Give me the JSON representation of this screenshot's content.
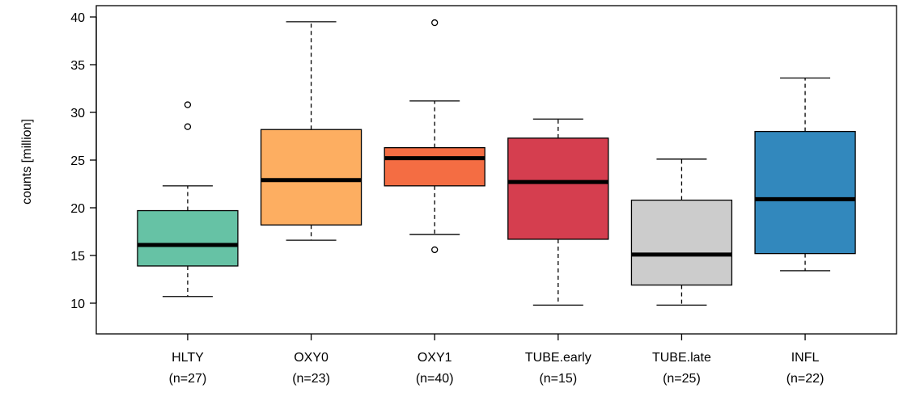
{
  "chart_data": {
    "type": "boxplot",
    "title": "",
    "xlabel": "",
    "ylabel": "counts [million]",
    "ylim": [
      7,
      41
    ],
    "yticks": [
      10,
      15,
      20,
      25,
      30,
      35,
      40
    ],
    "ytick_labels": [
      "10",
      "15",
      "20",
      "25",
      "30",
      "35",
      "40"
    ],
    "grid": false,
    "legend": "none",
    "groups": [
      {
        "label": "HLTY",
        "n_label": "(n=27)",
        "color": "#66c2a5",
        "whisker_low": 10.7,
        "q1": 13.9,
        "median": 16.1,
        "q3": 19.7,
        "whisker_high": 22.3,
        "outliers": [
          28.5,
          30.8
        ]
      },
      {
        "label": "OXY0",
        "n_label": "(n=23)",
        "color": "#fdae61",
        "whisker_low": 16.6,
        "q1": 18.2,
        "median": 22.9,
        "q3": 28.2,
        "whisker_high": 39.5,
        "outliers": []
      },
      {
        "label": "OXY1",
        "n_label": "(n=40)",
        "color": "#f46d43",
        "whisker_low": 17.2,
        "q1": 22.3,
        "median": 25.2,
        "q3": 26.3,
        "whisker_high": 31.2,
        "outliers": [
          15.6,
          39.4
        ]
      },
      {
        "label": "TUBE.early",
        "n_label": "(n=15)",
        "color": "#d53e4f",
        "whisker_low": 9.8,
        "q1": 16.7,
        "median": 22.7,
        "q3": 27.3,
        "whisker_high": 29.3,
        "outliers": []
      },
      {
        "label": "TUBE.late",
        "n_label": "(n=25)",
        "color": "#cccccc",
        "whisker_low": 9.8,
        "q1": 11.9,
        "median": 15.1,
        "q3": 20.8,
        "whisker_high": 25.1,
        "outliers": []
      },
      {
        "label": "INFL",
        "n_label": "(n=22)",
        "color": "#3288bd",
        "whisker_low": 13.4,
        "q1": 15.2,
        "median": 20.9,
        "q3": 28.0,
        "whisker_high": 33.6,
        "outliers": []
      }
    ]
  }
}
